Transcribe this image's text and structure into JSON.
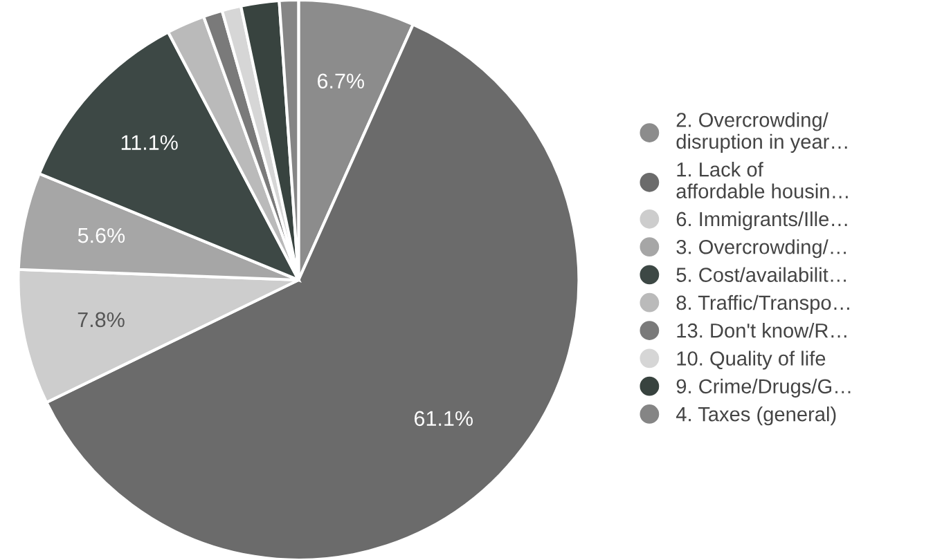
{
  "chart_data": {
    "type": "pie",
    "categories": [
      "2. Overcrowding/\ndisruption in year…",
      "1. Lack of\naffordable housin…",
      "6. Immigrants/Ille…",
      "3. Overcrowding/…",
      "5. Cost/availabilit…",
      "8. Traffic/Transpo…",
      "13. Don't know/R…",
      "10. Quality of life",
      "9. Crime/Drugs/G…",
      "4. Taxes (general)"
    ],
    "values": [
      6.7,
      61.1,
      7.8,
      5.6,
      11.1,
      2.2,
      1.1,
      1.1,
      2.2,
      1.1
    ],
    "colors": [
      "#8c8c8c",
      "#6b6b6b",
      "#cdcdcd",
      "#a6a6a6",
      "#3d4845",
      "#bababa",
      "#7a7a7a",
      "#d6d6d6",
      "#38433f",
      "#858585"
    ],
    "value_labels": [
      "6.7%",
      "61.1%",
      "7.8%",
      "5.6%",
      "11.1%",
      null,
      null,
      null,
      null,
      null
    ],
    "legend": "right"
  }
}
